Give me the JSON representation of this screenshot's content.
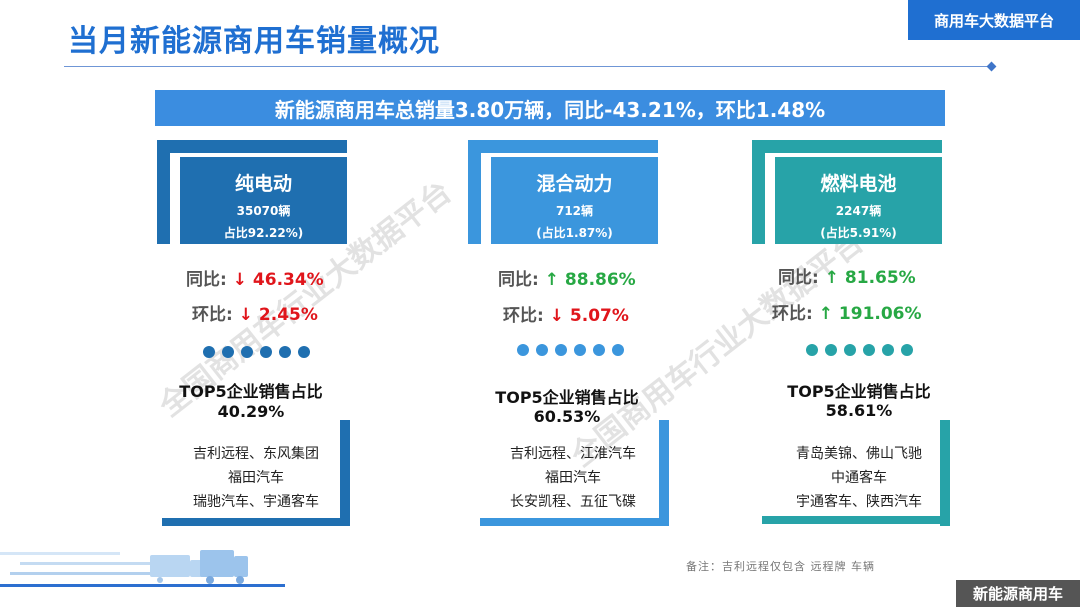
{
  "header": {
    "title": "当月新能源商用车销量概况",
    "brand": "商用车大数据平台"
  },
  "summary": "新能源商用车总销量3.80万辆，同比-43.21%，环比1.48%",
  "watermark": "全国商用车行业大数据平台",
  "categories": [
    {
      "name": "纯电动",
      "count": "35070辆",
      "share": "占比92.22%)",
      "yoy_label": "同比:",
      "yoy_arrow": "↓",
      "yoy_value": "46.34%",
      "mom_label": "环比:",
      "mom_arrow": "↓",
      "mom_value": "2.45%",
      "top5_title": "TOP5企业销售占比",
      "top5_pct": "40.29%",
      "companies": [
        "吉利远程、东风集团",
        "福田汽车",
        "瑞驰汽车、宇通客车"
      ],
      "color": "#1f6fb0"
    },
    {
      "name": "混合动力",
      "count": "712辆",
      "share": "(占比1.87%)",
      "yoy_label": "同比:",
      "yoy_arrow": "↑",
      "yoy_value": "88.86%",
      "mom_label": "环比:",
      "mom_arrow": "↓",
      "mom_value": "5.07%",
      "top5_title": "TOP5企业销售占比",
      "top5_pct": "60.53%",
      "companies": [
        "吉利远程、江淮汽车",
        "福田汽车",
        "长安凯程、五征飞碟"
      ],
      "color": "#3b96dd"
    },
    {
      "name": "燃料电池",
      "count": "2247辆",
      "share": "(占比5.91%)",
      "yoy_label": "同比:",
      "yoy_arrow": "↑",
      "yoy_value": "81.65%",
      "mom_label": "环比:",
      "mom_arrow": "↑",
      "mom_value": "191.06%",
      "top5_title": "TOP5企业销售占比",
      "top5_pct": "58.61%",
      "companies": [
        "青岛美锦、佛山飞驰",
        "中通客车",
        "宇通客车、陕西汽车"
      ],
      "color": "#27a3a8"
    }
  ],
  "footnote": "备注：吉利远程仅包含 远程牌 车辆",
  "corner_badge": "新能源商用车"
}
